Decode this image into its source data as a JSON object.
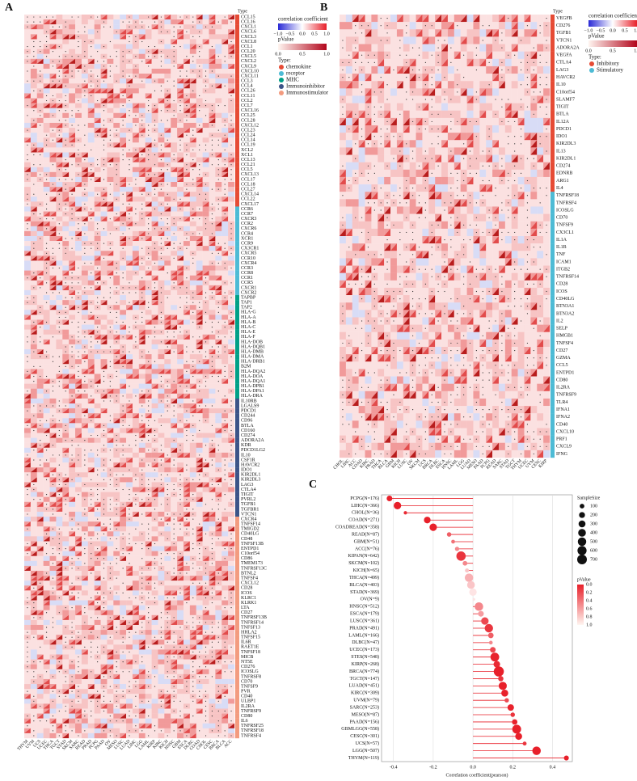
{
  "chart_data": [
    {
      "type": "heatmap",
      "title": "A",
      "type_label": "Type",
      "legend_title": "correlation coefficient",
      "legend_ticks": [
        {
          "value": -1,
          "label": "−1.0"
        },
        {
          "value": -0.5,
          "label": "−0.5"
        },
        {
          "value": 0,
          "label": "0.0"
        },
        {
          "value": 0.5,
          "label": "0.5"
        },
        {
          "value": 1,
          "label": "1.0"
        }
      ],
      "pvalue_title": "pValue",
      "pvalue_ticks": [
        {
          "value": 0,
          "label": "0.0"
        },
        {
          "value": 0.5,
          "label": "0.5"
        },
        {
          "value": 1,
          "label": "1.0"
        }
      ],
      "groups_title": "Type:",
      "columns": [
        "THYM",
        "UVM",
        "UCS",
        "UCEC",
        "THCA",
        "TGCT",
        "STAD",
        "SKCM",
        "SARC",
        "READ",
        "PRAD",
        "PCPG",
        "PAAD",
        "OV",
        "MESO",
        "LUSC",
        "LUAD",
        "LIHC",
        "LGG",
        "LAML",
        "KIRP",
        "KIRC",
        "KICH",
        "HNSC",
        "GBM",
        "ESCA",
        "DLBC",
        "COAD",
        "CHOL",
        "CESC",
        "BRCA",
        "BLCA",
        "ACC"
      ],
      "groups": [
        {
          "name": "chemokine",
          "color": "#e64b35",
          "genes": [
            "CCL15",
            "CCL16",
            "CXCL1",
            "CXCL6",
            "CXCL3",
            "CXCL8",
            "CCL1",
            "CCL20",
            "CXCL5",
            "CXCL2",
            "CXCL9",
            "CXCL10",
            "CXCL11",
            "CCL3",
            "CCL4",
            "CCL26",
            "CCL11",
            "CCL2",
            "CCL7",
            "CXCL16",
            "CCL25",
            "CCL28",
            "CXCL12",
            "CCL23",
            "CCL24",
            "CCL14",
            "CCL19",
            "XCL2",
            "XCL1",
            "CCL13",
            "CCL21",
            "CCL5",
            "CXCL13",
            "CCL17",
            "CCL18",
            "CCL27",
            "CXCL14",
            "CCL22",
            "CXCL17"
          ]
        },
        {
          "name": "receptor",
          "color": "#4dbbd5",
          "genes": [
            "CCR6",
            "CCR7",
            "CXCR3",
            "CCR2",
            "CXCR6",
            "CCR4",
            "XCR1",
            "CCR9",
            "CX3CR1",
            "CXCR5",
            "CCR10",
            "CXCR4",
            "CCR3",
            "CCR8",
            "CCR1",
            "CCR5",
            "CXCR1",
            "CXCR2"
          ]
        },
        {
          "name": "MHC",
          "color": "#00a087",
          "genes": [
            "TAPBP",
            "TAP1",
            "TAP2",
            "HLA-G",
            "HLA-A",
            "HLA-B",
            "HLA-C",
            "HLA-E",
            "HLA-F",
            "HLA-DOB",
            "HLA-DQB1",
            "HLA-DMB",
            "HLA-DMA",
            "HLA-DRB1",
            "B2M",
            "HLA-DQA2",
            "HLA-DOA",
            "HLA-DQA1",
            "HLA-DPB1",
            "HLA-DPA1",
            "HLA-DRA"
          ]
        },
        {
          "name": "Immunoinhibitor",
          "color": "#3c5488",
          "genes": [
            "IL10RB",
            "LGALS9",
            "PDCD1",
            "CD244",
            "CD96",
            "BTLA",
            "CD160",
            "CD274",
            "ADORA2A",
            "KDR",
            "PDCD1LG2",
            "IL10",
            "CSF1R",
            "HAVCR2",
            "IDO1",
            "KIR2DL1",
            "KIR2DL3",
            "LAG3",
            "CTLA4",
            "TIGIT",
            "PVRL2",
            "TGFB1",
            "TGFBR1",
            "VTCN1"
          ]
        },
        {
          "name": "Immunostimulator",
          "color": "#f39b7f",
          "genes": [
            "CXCR4",
            "TNFSF14",
            "TMIGD2",
            "CD40LG",
            "CD48",
            "TNFSF13B",
            "ENTPD1",
            "C10orf54",
            "CD86",
            "TMEM173",
            "TNFRSF13C",
            "BTNL2",
            "TNFSF4",
            "CXCL12",
            "CD28",
            "ICOS",
            "KLRC1",
            "KLRK1",
            "LTA",
            "CD27",
            "TNFRSF13B",
            "TNFRSF14",
            "TNFSF13",
            "HHLA2",
            "TNFSF15",
            "IL6R",
            "RAET1E",
            "TNFSF18",
            "MICB",
            "NT5E",
            "CD276",
            "ICOSLG",
            "TNFRSF8",
            "CD70",
            "TNFSF9",
            "PVR",
            "CD40",
            "ULBP1",
            "IL2RA",
            "TNFRSF9",
            "CD80",
            "IL6",
            "TNFRSF25",
            "TNFRSF18",
            "TNFRSF4"
          ]
        }
      ]
    },
    {
      "type": "heatmap",
      "title": "B",
      "type_label": "Type",
      "legend_title": "correlation coefficient",
      "legend_ticks": [
        {
          "value": -1,
          "label": "−1.0"
        },
        {
          "value": -0.5,
          "label": "−0.5"
        },
        {
          "value": 0,
          "label": "0.0"
        },
        {
          "value": 0.5,
          "label": "0.5"
        },
        {
          "value": 1,
          "label": "1.0"
        }
      ],
      "pvalue_title": "pValue",
      "pvalue_ticks": [
        {
          "value": 0,
          "label": "0.0"
        },
        {
          "value": 0.5,
          "label": "0.5"
        },
        {
          "value": 1,
          "label": "1.0"
        }
      ],
      "groups_title": "Type:",
      "columns": [
        "CHOL",
        "LIHC",
        "ACC",
        "COAD",
        "KIRC",
        "PRAD",
        "THCA",
        "BLCA",
        "GBM",
        "KICH",
        "LUSC",
        "OV",
        "SKCM",
        "UCS",
        "BRCA",
        "DLBC",
        "ESCA",
        "HNSC",
        "LAML",
        "LGG",
        "LUAD",
        "MESO",
        "PAAD",
        "PCPG",
        "READ",
        "SARC",
        "STAD",
        "TGCT",
        "THYM",
        "UCEC",
        "UVM",
        "CESC",
        "KIRP"
      ],
      "groups": [
        {
          "name": "Inhibitory",
          "color": "#e64b35",
          "genes": [
            "VEGFB",
            "CD276",
            "TGFB1",
            "VTCN1",
            "ADORA2A",
            "VEGFA",
            "CTLA4",
            "LAG3",
            "HAVCR2",
            "IL10",
            "C10orf54",
            "SLAMF7",
            "TIGIT",
            "BTLA",
            "IL12A",
            "PDCD1",
            "IDO1",
            "KIR2DL3",
            "IL13",
            "KIR2DL1",
            "CD274",
            "EDNRB",
            "ARG1",
            "IL4"
          ]
        },
        {
          "name": "Stimulatory",
          "color": "#4dbbd5",
          "genes": [
            "TNFRSF18",
            "TNFRSF4",
            "ICOSLG",
            "CD70",
            "TNFSF9",
            "CX3CL1",
            "IL1A",
            "IL1B",
            "TNF",
            "ICAM1",
            "ITGB2",
            "TNFRSF14",
            "CD28",
            "ICOS",
            "CD40LG",
            "BTN3A1",
            "BTN3A2",
            "IL2",
            "SELP",
            "HMGB1",
            "TNFSF4",
            "CD27",
            "GZMA",
            "CCL5",
            "ENTPD1",
            "CD80",
            "IL2RA",
            "TNFRSF9",
            "TLR4",
            "IFNA1",
            "IFNA2",
            "CD40",
            "CXCL10",
            "PRF1",
            "CXCL9",
            "IFNG"
          ]
        }
      ]
    },
    {
      "type": "lollipop",
      "title": "C",
      "x_label": "Correlation coefficient(pearson)",
      "xlim": [
        -0.46,
        0.5
      ],
      "xticks": [
        -0.4,
        -0.2,
        {
          "value": 0,
          "label": "0.0"
        },
        0.2,
        0.4
      ],
      "categories": [
        "PCPG(N=176)",
        "LIHC(N=366)",
        "CHOL(N=36)",
        "COAD(N=271)",
        "COADREAD(N=358)",
        "READ(N=87)",
        "GBM(N=51)",
        "ACC(N=76)",
        "KIPAN(N=642)",
        "SKCM(N=102)",
        "KICH(N=65)",
        "THCA(N=499)",
        "BLCA(N=403)",
        "STAD(N=369)",
        "OV(N=9)",
        "HNSC(N=512)",
        "ESCA(N=179)",
        "LUSC(N=361)",
        "PRAD(N=491)",
        "LAML(N=166)",
        "DLBC(N=47)",
        "UCEC(N=173)",
        "STES(N=548)",
        "KIRP(N=268)",
        "BRCA(N=774)",
        "TGCT(N=147)",
        "LUAD(N=451)",
        "KIRC(N=309)",
        "UVM(N=79)",
        "SARC(N=253)",
        "MESO(N=87)",
        "PAAD(N=156)",
        "GBMLGG(N=558)",
        "CESC(N=301)",
        "UCS(N=57)",
        "LGG(N=507)",
        "THYM(N=119)"
      ],
      "values": [
        -0.42,
        -0.38,
        -0.34,
        -0.23,
        -0.2,
        -0.12,
        -0.1,
        -0.08,
        -0.06,
        -0.04,
        -0.03,
        -0.02,
        -0.01,
        0.0,
        0.005,
        0.03,
        0.04,
        0.06,
        0.08,
        0.09,
        0.09,
        0.1,
        0.11,
        0.12,
        0.13,
        0.14,
        0.15,
        0.16,
        0.17,
        0.19,
        0.2,
        0.21,
        0.22,
        0.23,
        0.26,
        0.32,
        0.47
      ],
      "sizes": [
        176,
        366,
        36,
        271,
        358,
        87,
        51,
        76,
        642,
        102,
        65,
        499,
        403,
        369,
        9,
        512,
        179,
        361,
        491,
        166,
        47,
        173,
        548,
        268,
        774,
        147,
        451,
        309,
        79,
        253,
        87,
        156,
        558,
        301,
        57,
        507,
        119
      ],
      "pvalues": [
        0,
        0,
        0.05,
        0,
        0,
        0.3,
        0.4,
        0.5,
        0.1,
        0.5,
        0.8,
        0.7,
        0.8,
        0.95,
        0.95,
        0.5,
        0.6,
        0.2,
        0.1,
        0.3,
        0.5,
        0.2,
        0.02,
        0.05,
        0,
        0.1,
        0,
        0.01,
        0.2,
        0.01,
        0.1,
        0.01,
        0,
        0,
        0.1,
        0,
        0
      ],
      "size_title": "SampleSize",
      "size_ticks": [
        100,
        200,
        300,
        400,
        500,
        600,
        700
      ],
      "pvalue_title": "pValue",
      "pvalue_ticks": [
        {
          "value": 0,
          "label": "0.0"
        },
        0.2,
        0.4,
        0.6,
        0.8,
        {
          "value": 1,
          "label": "1.0"
        }
      ],
      "color": "#e8202a",
      "grid": true
    }
  ]
}
